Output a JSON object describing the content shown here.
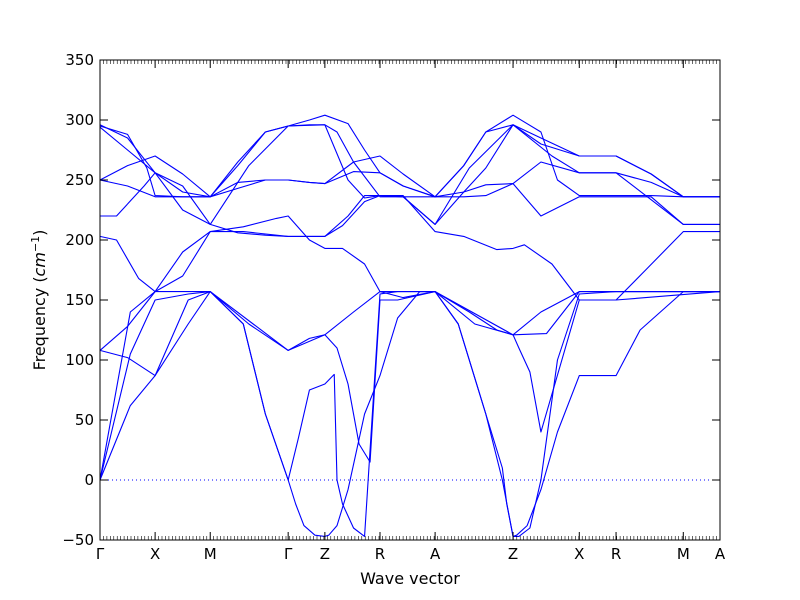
{
  "chart_data": {
    "type": "line",
    "title": "",
    "xlabel": "Wave vector",
    "ylabel_main": "Frequency (",
    "ylabel_unit": "cm",
    "ylabel_exp": "−1",
    "ylabel_close": ")",
    "ylim": [
      -50,
      350
    ],
    "yticks": [
      -50,
      0,
      50,
      100,
      150,
      200,
      250,
      300,
      350
    ],
    "zero_line": true,
    "line_color": "#0000ff",
    "kpoints": [
      {
        "label": "Γ",
        "pos": 0.0
      },
      {
        "label": "X",
        "pos": 1.0
      },
      {
        "label": "M",
        "pos": 2.0
      },
      {
        "label": "Γ",
        "pos": 3.414
      },
      {
        "label": "Z",
        "pos": 4.08
      },
      {
        "label": "R",
        "pos": 5.08
      },
      {
        "label": "A",
        "pos": 6.08
      },
      {
        "label": "Z",
        "pos": 7.494
      },
      {
        "label": "X",
        "pos": 8.696
      },
      {
        "label": "R",
        "pos": 9.363
      },
      {
        "label": "M",
        "pos": 10.583
      },
      {
        "label": "A",
        "pos": 11.249
      }
    ],
    "series": [
      {
        "x": [
          0.0,
          0.55,
          1.0,
          1.6,
          2.0,
          2.6,
          3.0,
          3.414,
          3.55,
          3.7,
          3.9,
          4.08,
          4.15,
          4.3,
          4.5,
          4.8,
          5.08,
          5.4,
          5.8,
          6.08,
          6.5,
          7.0,
          7.3,
          7.494,
          7.56,
          7.75,
          8.0,
          8.3,
          8.696,
          9.363,
          9.8,
          10.583,
          11.249
        ],
        "y": [
          0,
          62,
          87,
          130,
          157,
          130,
          55,
          0,
          -20,
          -38,
          -46,
          -47,
          -46,
          -38,
          -8,
          55,
          87,
          135,
          157,
          157,
          130,
          55,
          0,
          -47,
          -46,
          -38,
          -8,
          40,
          87,
          87,
          125,
          157,
          157
        ]
      },
      {
        "x": [
          0.0,
          0.55,
          1.0,
          1.6,
          2.0,
          2.6,
          3.0,
          3.414,
          3.6,
          3.8,
          4.08,
          4.25,
          4.3,
          4.4,
          4.6,
          4.8,
          5.08,
          5.4,
          5.8,
          6.08,
          6.5,
          7.0,
          7.3,
          7.38,
          7.494,
          7.6,
          7.8,
          8.0,
          8.3,
          8.696,
          9.363,
          9.8,
          10.583,
          11.249
        ],
        "y": [
          0,
          105,
          150,
          155,
          157,
          130,
          55,
          0,
          35,
          75,
          80,
          88,
          0,
          -20,
          -40,
          -47,
          155,
          157,
          157,
          157,
          130,
          55,
          10,
          -20,
          -47,
          -47,
          -40,
          0,
          100,
          155,
          157,
          157,
          157,
          157
        ]
      },
      {
        "x": [
          0.0,
          0.55,
          1.0,
          1.6,
          2.0,
          3.414,
          4.08,
          4.3,
          4.5,
          4.7,
          4.9,
          5.08,
          5.4,
          6.08,
          7.494,
          7.6,
          7.8,
          8.0,
          8.696,
          9.363,
          11.249
        ],
        "y": [
          0,
          140,
          157,
          157,
          157,
          108,
          121,
          110,
          80,
          30,
          15,
          150,
          150,
          157,
          121,
          110,
          90,
          40,
          150,
          150,
          157
        ]
      },
      {
        "x": [
          0.0,
          0.5,
          1.0,
          1.6,
          2.0,
          2.7,
          3.414,
          3.8,
          4.08,
          4.6,
          5.08,
          5.5,
          6.08,
          6.8,
          7.494,
          8.1,
          8.696,
          9.363,
          9.8,
          10.583,
          11.249
        ],
        "y": [
          108,
          102,
          87,
          150,
          157,
          130,
          108,
          118,
          121,
          140,
          157,
          157,
          157,
          130,
          121,
          122,
          157,
          157,
          157,
          157,
          157
        ]
      },
      {
        "x": [
          0.0,
          0.5,
          1.0,
          1.5,
          2.0,
          2.6,
          3.2,
          3.414,
          3.8,
          4.08,
          4.4,
          4.8,
          5.08,
          5.5,
          6.08,
          6.7,
          7.2,
          7.494,
          8.0,
          8.696,
          9.363,
          9.8,
          10.583,
          11.249
        ],
        "y": [
          108,
          128,
          157,
          190,
          207,
          211,
          218,
          220,
          200,
          193,
          193,
          180,
          157,
          152,
          157,
          140,
          125,
          121,
          140,
          157,
          157,
          157,
          157,
          157
        ]
      },
      {
        "x": [
          0.0,
          0.3,
          0.7,
          1.0,
          1.5,
          2.0,
          2.6,
          3.414,
          4.08,
          4.4,
          4.8,
          5.08,
          5.5,
          6.08,
          6.6,
          7.2,
          7.494,
          7.7,
          8.2,
          8.696,
          9.363,
          9.9,
          10.583,
          11.249
        ],
        "y": [
          203,
          200,
          168,
          157,
          170,
          207,
          207,
          203,
          203,
          212,
          232,
          237,
          237,
          207,
          203,
          192,
          193,
          196,
          180,
          150,
          150,
          175,
          207,
          207
        ]
      },
      {
        "x": [
          0.0,
          0.3,
          0.8,
          1.0,
          1.5,
          2.0,
          2.5,
          3.0,
          3.414,
          3.8,
          4.08,
          4.5,
          4.8,
          5.08,
          5.5,
          6.08,
          6.6,
          7.0,
          7.494,
          8.0,
          8.696,
          9.363,
          10.0,
          10.583,
          11.249
        ],
        "y": [
          220,
          220,
          245,
          256,
          245,
          213,
          206,
          204,
          203,
          203,
          203,
          220,
          237,
          237,
          236,
          213,
          240,
          246,
          247,
          220,
          236,
          236,
          236,
          213,
          213
        ]
      },
      {
        "x": [
          0.0,
          0.5,
          1.0,
          1.5,
          2.0,
          2.5,
          3.0,
          3.414,
          3.8,
          4.08,
          4.6,
          5.08,
          5.5,
          6.08,
          6.6,
          7.0,
          7.494,
          8.0,
          8.696,
          9.363,
          10.0,
          10.583,
          11.249
        ],
        "y": [
          250,
          245,
          236,
          236,
          236,
          243,
          250,
          250,
          248,
          247,
          257,
          256,
          245,
          236,
          236,
          237,
          247,
          265,
          256,
          256,
          248,
          236,
          236
        ]
      },
      {
        "x": [
          0.0,
          0.5,
          1.0,
          1.5,
          2.0,
          2.5,
          3.0,
          3.414,
          3.8,
          4.08,
          4.6,
          5.08,
          5.5,
          6.08,
          6.6,
          7.0,
          7.494,
          8.0,
          8.696,
          9.363,
          10.0,
          10.583,
          11.249
        ],
        "y": [
          250,
          262,
          270,
          255,
          236,
          248,
          250,
          250,
          248,
          247,
          265,
          270,
          255,
          236,
          240,
          260,
          296,
          285,
          270,
          270,
          255,
          236,
          236
        ]
      },
      {
        "x": [
          0.0,
          0.5,
          0.85,
          1.0,
          1.5,
          2.0,
          2.5,
          3.0,
          3.414,
          3.8,
          4.08,
          4.5,
          4.8,
          5.08,
          5.5,
          6.08,
          6.6,
          7.0,
          7.494,
          8.0,
          8.696,
          9.363,
          10.0,
          10.583,
          11.249
        ],
        "y": [
          295,
          288,
          260,
          237,
          236,
          236,
          262,
          290,
          295,
          296,
          296,
          250,
          235,
          237,
          236,
          236,
          262,
          290,
          296,
          280,
          270,
          270,
          255,
          236,
          236
        ]
      },
      {
        "x": [
          0.0,
          0.5,
          1.0,
          1.5,
          2.0,
          2.5,
          3.0,
          3.414,
          3.8,
          4.08,
          4.5,
          4.8,
          5.08,
          5.5,
          6.08,
          6.6,
          7.0,
          7.494,
          8.0,
          8.3,
          8.696,
          9.363,
          10.0,
          10.583,
          11.249
        ],
        "y": [
          294,
          275,
          256,
          240,
          236,
          265,
          290,
          295,
          300,
          304,
          297,
          275,
          256,
          245,
          236,
          262,
          290,
          304,
          290,
          250,
          237,
          237,
          237,
          236,
          236
        ]
      },
      {
        "x": [
          0.0,
          0.5,
          1.0,
          1.5,
          2.0,
          2.7,
          3.414,
          4.08,
          4.3,
          4.6,
          5.08,
          5.5,
          6.08,
          6.7,
          7.494,
          8.2,
          8.696,
          9.363,
          10.583,
          11.249
        ],
        "y": [
          296,
          285,
          256,
          225,
          213,
          262,
          295,
          296,
          290,
          265,
          236,
          236,
          213,
          260,
          296,
          270,
          256,
          256,
          213,
          213
        ]
      }
    ]
  }
}
